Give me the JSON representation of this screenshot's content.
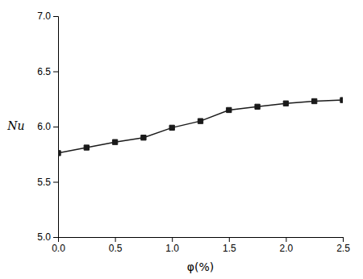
{
  "chart_data": {
    "type": "line",
    "x": [
      0.0,
      0.25,
      0.5,
      0.75,
      1.0,
      1.25,
      1.5,
      1.75,
      2.0,
      2.25,
      2.5
    ],
    "values": [
      5.76,
      5.81,
      5.86,
      5.9,
      5.99,
      6.05,
      6.15,
      6.18,
      6.21,
      6.23,
      6.24
    ],
    "xlim": [
      0.0,
      2.5
    ],
    "ylim": [
      5.0,
      7.0
    ],
    "xticks": [
      {
        "value": 0.0,
        "label": "0.0"
      },
      0.5,
      {
        "value": 1.0,
        "label": "1.0"
      },
      1.5,
      {
        "value": 2.0,
        "label": "2.0"
      },
      2.5
    ],
    "yticks": [
      {
        "value": 5.0,
        "label": "5.0"
      },
      5.5,
      {
        "value": 6.0,
        "label": "6.0"
      },
      6.5,
      {
        "value": 7.0,
        "label": "7.0"
      }
    ],
    "xlabel": "φ(%)",
    "ylabel": "Nu",
    "color": "#1a1a1a",
    "marker": "square",
    "line_style": "solid"
  }
}
